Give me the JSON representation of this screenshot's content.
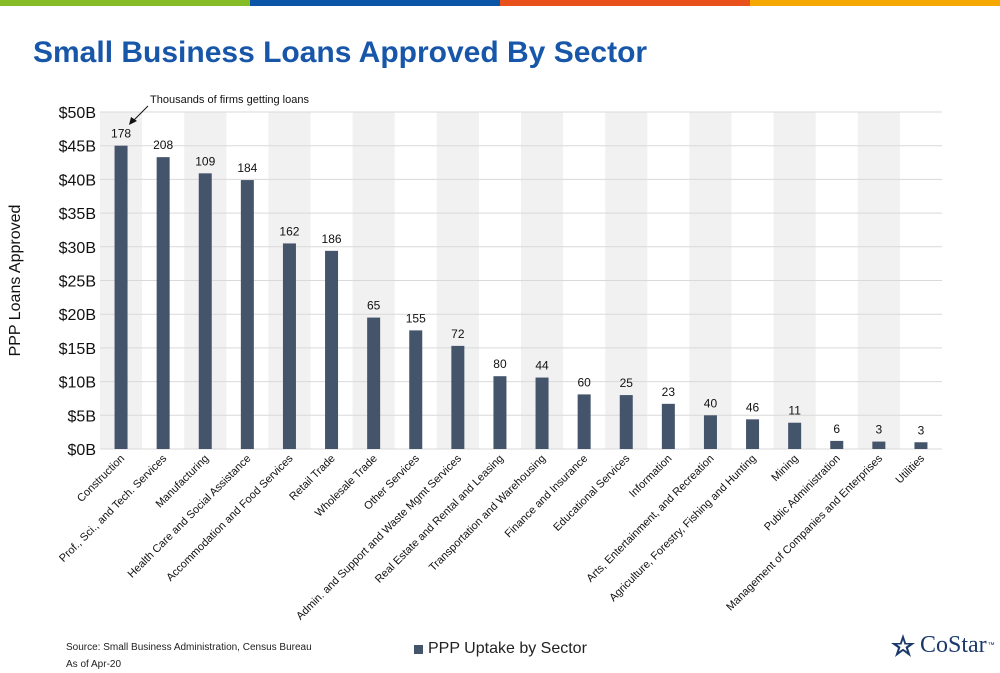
{
  "colors": {
    "topbar": [
      "#86bc25",
      "#0b55a7",
      "#e8501c",
      "#f5a800"
    ],
    "title": "#1756a9",
    "bar": "#44546a",
    "band": "#f1f1f1",
    "grid": "#d9d9d9"
  },
  "title": "Small Business Loans Approved By Sector",
  "source_line1": "Source: Small Business Administration, Census Bureau",
  "source_line2": "As of Apr-20",
  "logo_text": "CoStar",
  "logo_tm": "™",
  "logo_icon": "costar-star-icon",
  "chart_data": {
    "type": "bar",
    "title": "",
    "xlabel": "",
    "ylabel": "PPP Loans Approved",
    "ylim": [
      0,
      50
    ],
    "yticks": [
      0,
      5,
      10,
      15,
      20,
      25,
      30,
      35,
      40,
      45,
      50
    ],
    "ytick_labels": [
      "$0B",
      "$5B",
      "$10B",
      "$15B",
      "$20B",
      "$25B",
      "$30B",
      "$35B",
      "$40B",
      "$45B",
      "$50B"
    ],
    "grid": true,
    "legend": "bottom-center",
    "annotation": "Thousands of firms getting loans",
    "categories": [
      "Construction",
      "Prof., Sci., and Tech. Services",
      "Manufacturing",
      "Health Care and Social Assistance",
      "Accommodation and Food Services",
      "Retail Trade",
      "Wholesale Trade",
      "Other Services",
      "Admin. and Support and Waste Mgmt Services",
      "Real Estate and Rental and Leasing",
      "Transportation and Warehousing",
      "Finance and Insurance",
      "Educational Services",
      "Information",
      "Arts, Entertainment, and Recreation",
      "Agriculture, Forestry, Fishing and Hunting",
      "Mining",
      "Public Administration",
      "Management of Companies and Enterprises",
      "Utilities"
    ],
    "series": [
      {
        "name": "PPP Uptake by Sector",
        "values": [
          45.0,
          43.3,
          40.9,
          39.9,
          30.5,
          29.4,
          19.5,
          17.6,
          15.3,
          10.8,
          10.6,
          8.1,
          8.0,
          6.7,
          5.0,
          4.4,
          3.9,
          1.2,
          1.1,
          1.0
        ],
        "data_labels": [
          "178",
          "208",
          "109",
          "184",
          "162",
          "186",
          "65",
          "155",
          "72",
          "80",
          "44",
          "60",
          "25",
          "23",
          "40",
          "46",
          "11",
          "6",
          "3",
          "3"
        ]
      }
    ]
  }
}
